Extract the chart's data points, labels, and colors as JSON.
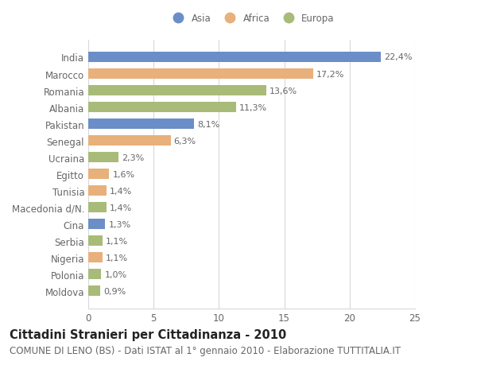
{
  "categories": [
    "India",
    "Marocco",
    "Romania",
    "Albania",
    "Pakistan",
    "Senegal",
    "Ucraina",
    "Egitto",
    "Tunisia",
    "Macedonia d/N.",
    "Cina",
    "Serbia",
    "Nigeria",
    "Polonia",
    "Moldova"
  ],
  "values": [
    22.4,
    17.2,
    13.6,
    11.3,
    8.1,
    6.3,
    2.3,
    1.6,
    1.4,
    1.4,
    1.3,
    1.1,
    1.1,
    1.0,
    0.9
  ],
  "labels": [
    "22,4%",
    "17,2%",
    "13,6%",
    "11,3%",
    "8,1%",
    "6,3%",
    "2,3%",
    "1,6%",
    "1,4%",
    "1,4%",
    "1,3%",
    "1,1%",
    "1,1%",
    "1,0%",
    "0,9%"
  ],
  "continent": [
    "Asia",
    "Africa",
    "Europa",
    "Europa",
    "Asia",
    "Africa",
    "Europa",
    "Africa",
    "Africa",
    "Europa",
    "Asia",
    "Europa",
    "Africa",
    "Europa",
    "Europa"
  ],
  "colors": {
    "Asia": "#6b8ec9",
    "Africa": "#e8b07a",
    "Europa": "#a8bb78"
  },
  "legend_order": [
    "Asia",
    "Africa",
    "Europa"
  ],
  "title": "Cittadini Stranieri per Cittadinanza - 2010",
  "subtitle": "COMUNE DI LENO (BS) - Dati ISTAT al 1° gennaio 2010 - Elaborazione TUTTITALIA.IT",
  "xlim": [
    0,
    25
  ],
  "xticks": [
    0,
    5,
    10,
    15,
    20,
    25
  ],
  "bg_color": "#ffffff",
  "grid_color": "#d8d8d8",
  "bar_height": 0.62,
  "label_fontsize": 8,
  "title_fontsize": 10.5,
  "subtitle_fontsize": 8.5,
  "tick_fontsize": 8.5,
  "text_color": "#666666",
  "title_color": "#222222"
}
